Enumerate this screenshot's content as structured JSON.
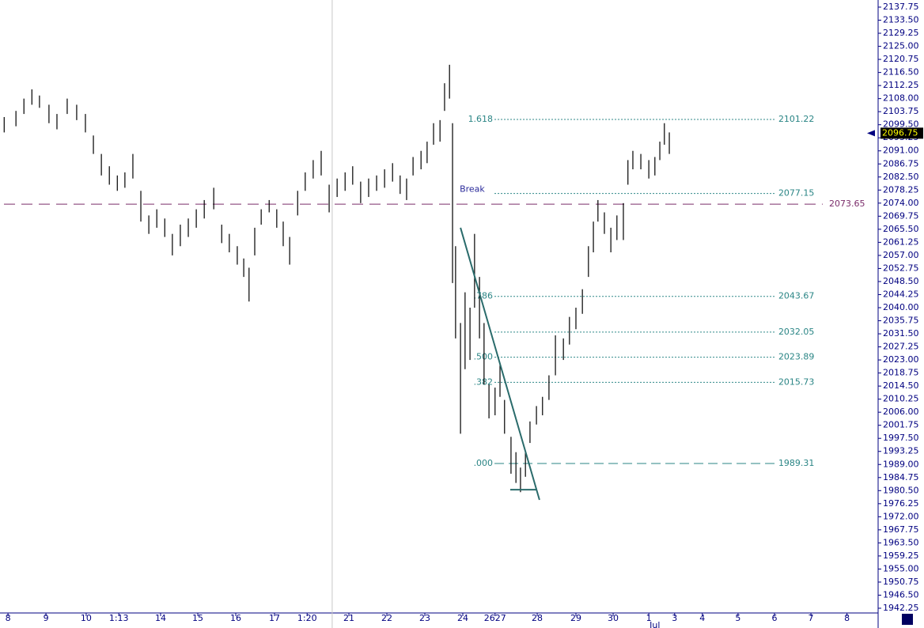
{
  "chart_data": {
    "type": "ohlc",
    "color": "#000000",
    "x": [
      -0.1,
      0.21,
      0.42,
      0.63,
      0.83,
      1.08,
      1.29,
      1.56,
      1.81,
      2.04,
      2.25,
      2.46,
      2.67,
      2.88,
      3.08,
      3.29,
      3.5,
      3.71,
      3.92,
      4.13,
      4.33,
      4.54,
      4.75,
      4.96,
      5.17,
      5.42,
      5.63,
      5.83,
      6.04,
      6.21,
      6.35,
      6.5,
      6.67,
      6.88,
      7.08,
      7.25,
      7.42,
      7.63,
      7.83,
      8.04,
      8.25,
      8.46,
      8.67,
      8.88,
      9.08,
      9.29,
      9.5,
      9.71,
      9.92,
      10.13,
      10.33,
      10.5,
      10.67,
      10.88,
      11.04,
      11.21,
      11.38,
      11.5,
      11.63,
      11.71,
      11.79,
      11.92,
      12.04,
      12.17,
      12.29,
      12.42,
      12.54,
      12.67,
      12.83,
      12.96,
      13.08,
      13.25,
      13.38,
      13.5,
      13.63,
      13.75,
      13.92,
      14.08,
      14.25,
      14.42,
      14.63,
      14.79,
      14.96,
      15.13,
      15.29,
      15.42,
      15.54,
      15.71,
      15.88,
      16.04,
      16.21,
      16.33,
      16.46,
      16.67,
      16.88,
      17.04,
      17.17,
      17.29,
      17.42
    ],
    "low": [
      2097,
      2099,
      2103,
      2106,
      2105,
      2100,
      2098,
      2103,
      2101,
      2097,
      2090,
      2083,
      2080,
      2078,
      2079,
      2082,
      2068,
      2064,
      2066,
      2063,
      2057,
      2060,
      2063,
      2066,
      2069,
      2072,
      2061,
      2058,
      2054,
      2050,
      2042,
      2057,
      2067,
      2071,
      2066,
      2060,
      2054,
      2070,
      2078,
      2082,
      2083,
      2071,
      2076,
      2078,
      2080,
      2074,
      2076,
      2078,
      2079,
      2081,
      2077,
      2075,
      2083,
      2085,
      2087,
      2093,
      2094,
      2104,
      2108,
      2048,
      2030,
      1999,
      2020,
      2023,
      2040,
      2030,
      2015,
      2004,
      2005,
      2011,
      1999,
      1986,
      1983,
      1980,
      1985,
      1996,
      2002,
      2005,
      2010,
      2018,
      2023,
      2028,
      2033,
      2038,
      2050,
      2058,
      2068,
      2064,
      2058,
      2062,
      2062,
      2080,
      2085,
      2085,
      2082,
      2083,
      2088,
      2093,
      2090
    ],
    "high": [
      2102,
      2104,
      2108,
      2111,
      2109,
      2106,
      2103,
      2108,
      2106,
      2103,
      2096,
      2090,
      2086,
      2083,
      2084,
      2090,
      2078,
      2070,
      2072,
      2069,
      2064,
      2067,
      2069,
      2072,
      2075,
      2079,
      2067,
      2064,
      2060,
      2056,
      2053,
      2066,
      2072,
      2075,
      2072,
      2068,
      2063,
      2078,
      2084,
      2088,
      2091,
      2080,
      2082,
      2084,
      2086,
      2081,
      2082,
      2083,
      2085,
      2087,
      2083,
      2082,
      2089,
      2091,
      2094,
      2100,
      2101,
      2113,
      2119,
      2100,
      2060,
      2035,
      2045,
      2040,
      2064,
      2050,
      2035,
      2015,
      2014,
      2022,
      2010,
      1998,
      1993,
      1988,
      1993,
      2003,
      2008,
      2011,
      2018,
      2031,
      2030,
      2037,
      2040,
      2046,
      2060,
      2068,
      2075,
      2071,
      2066,
      2070,
      2074,
      2088,
      2091,
      2090,
      2088,
      2089,
      2094,
      2100,
      2097
    ],
    "xlim": [
      -0.21,
      22.92
    ],
    "xticks": [
      {
        "value": 0,
        "label": "8"
      },
      {
        "value": 1,
        "label": "9"
      },
      {
        "value": 2.06,
        "label": "10"
      },
      {
        "value": 2.92,
        "label": "1:13"
      },
      {
        "value": 4.02,
        "label": "14"
      },
      {
        "value": 5,
        "label": "15"
      },
      {
        "value": 6,
        "label": "16"
      },
      {
        "value": 7.02,
        "label": "17"
      },
      {
        "value": 7.88,
        "label": "1:20"
      },
      {
        "value": 8.98,
        "label": "21"
      },
      {
        "value": 9.98,
        "label": "22"
      },
      {
        "value": 10.98,
        "label": "23"
      },
      {
        "value": 11.98,
        "label": "24"
      },
      {
        "value": 12.83,
        "label": "2627"
      },
      {
        "value": 13.94,
        "label": "28"
      },
      {
        "value": 14.96,
        "label": "29"
      },
      {
        "value": 15.94,
        "label": "30"
      },
      {
        "value": 16.88,
        "label": "1"
      },
      {
        "value": 17.56,
        "label": "3"
      },
      {
        "value": 18.29,
        "label": "4"
      },
      {
        "value": 19.23,
        "label": "5"
      },
      {
        "value": 20.19,
        "label": "6"
      },
      {
        "value": 21.15,
        "label": "7"
      },
      {
        "value": 22.1,
        "label": "8"
      }
    ],
    "month_label": {
      "value": 17.04,
      "label": "Jul"
    },
    "ylim": [
      1942.25,
      2137.75
    ],
    "yticks": [
      1942.25,
      {
        "value": 1946.5,
        "label": "1946.50"
      },
      1950.75,
      {
        "value": 1955,
        "label": "1955.00"
      },
      1959.25,
      {
        "value": 1963.5,
        "label": "1963.50"
      },
      1967.75,
      {
        "value": 1972,
        "label": "1972.00"
      },
      1976.25,
      {
        "value": 1980.5,
        "label": "1980.50"
      },
      1984.75,
      {
        "value": 1989,
        "label": "1989.00"
      },
      1993.25,
      {
        "value": 1997.5,
        "label": "1997.50"
      },
      2001.75,
      {
        "value": 2006,
        "label": "2006.00"
      },
      2010.25,
      {
        "value": 2014.5,
        "label": "2014.50"
      },
      2018.75,
      {
        "value": 2023,
        "label": "2023.00"
      },
      2027.25,
      {
        "value": 2031.5,
        "label": "2031.50"
      },
      2035.75,
      {
        "value": 2040,
        "label": "2040.00"
      },
      2044.25,
      {
        "value": 2048.5,
        "label": "2048.50"
      },
      2052.75,
      {
        "value": 2057,
        "label": "2057.00"
      },
      2061.25,
      {
        "value": 2065.5,
        "label": "2065.50"
      },
      2069.75,
      {
        "value": 2074,
        "label": "2074.00"
      },
      2078.25,
      {
        "value": 2082.5,
        "label": "2082.50"
      },
      2086.75,
      {
        "value": 2091,
        "label": "2091.00"
      },
      2095.25,
      {
        "value": 2099.5,
        "label": "2099.50"
      },
      2103.75,
      {
        "value": 2108,
        "label": "2108.00"
      },
      2112.25,
      {
        "value": 2116.5,
        "label": "2116.50"
      },
      2120.75,
      {
        "value": 2125,
        "label": "2125.00"
      },
      2129.25,
      {
        "value": 2133.5,
        "label": "2133.50"
      },
      2137.75
    ],
    "levels_color": "#2a8585",
    "levels_xrange": [
      12.19,
      20.21
    ],
    "levels": [
      {
        "value": 2101.22,
        "ratio": "1.618"
      },
      {
        "value": 2077.15,
        "note": "Break"
      },
      {
        "value": 2043.67,
        "ratio": ".786"
      },
      {
        "value": 2032.05
      },
      {
        "value": 2023.89,
        "ratio": ".500"
      },
      {
        "value": 2015.73,
        "ratio": ".382"
      },
      {
        "value": 1989.31,
        "ratio": ".000"
      }
    ],
    "hline": {
      "value": 2073.65,
      "color": "#7b2d6b"
    },
    "vline": {
      "value": 8.54,
      "color": "#c8c8c8"
    },
    "trend": {
      "x": [
        11.92,
        14.0
      ],
      "y": [
        2066.0,
        1977.5
      ],
      "color": "#2a6b6b"
    },
    "support": {
      "x": [
        13.23,
        13.92
      ],
      "y": [
        1980.8,
        1980.8
      ],
      "color": "#2a6b6b"
    },
    "last_price": 2096.75
  }
}
